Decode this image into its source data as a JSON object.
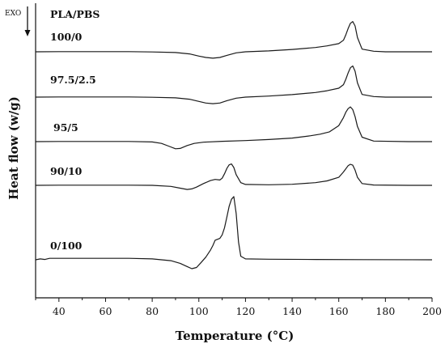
{
  "chart_data": {
    "type": "line",
    "xlabel": "Temperature (°C)",
    "ylabel": "Heat flow (w/g)",
    "xlim": [
      30,
      200
    ],
    "x_ticks": [
      "40",
      "60",
      "80",
      "100",
      "120",
      "140",
      "160",
      "180",
      "200"
    ],
    "legend_title": "PLA/PBS",
    "exo_label": "EXO",
    "series": [
      {
        "name": "100/0",
        "x": [
          30,
          40,
          50,
          60,
          70,
          80,
          90,
          96,
          100,
          103,
          106,
          109,
          112,
          116,
          120,
          130,
          140,
          150,
          155,
          160,
          162,
          163,
          164,
          165,
          166,
          167,
          168,
          170,
          175,
          180,
          190,
          200
        ],
        "y": [
          0,
          0.1,
          0.1,
          0.1,
          0.1,
          -0.1,
          -0.4,
          -1.2,
          -2.4,
          -3.2,
          -3.6,
          -3.2,
          -2.0,
          -0.6,
          0,
          0.5,
          1.3,
          2.4,
          3.3,
          4.6,
          6.5,
          9.5,
          13.0,
          16.0,
          17.0,
          14.5,
          8.0,
          1.5,
          0.3,
          0,
          0,
          0
        ]
      },
      {
        "name": "97.5/2.5",
        "x": [
          30,
          40,
          50,
          60,
          70,
          80,
          90,
          96,
          100,
          103,
          106,
          109,
          112,
          116,
          120,
          130,
          140,
          150,
          155,
          160,
          162,
          163,
          164,
          165,
          166,
          167,
          168,
          170,
          175,
          180,
          190,
          200
        ],
        "y": [
          0,
          0.1,
          0.1,
          0.1,
          0.1,
          -0.1,
          -0.4,
          -1.2,
          -2.4,
          -3.3,
          -3.7,
          -3.3,
          -2.0,
          -0.6,
          0,
          0.6,
          1.4,
          2.6,
          3.6,
          5.0,
          7.0,
          10.0,
          13.5,
          16.5,
          17.5,
          14.5,
          8.0,
          1.5,
          0.3,
          0,
          0,
          0
        ]
      },
      {
        "name": "95/5",
        "x": [
          30,
          40,
          50,
          60,
          70,
          80,
          84,
          87,
          90,
          92,
          95,
          98,
          102,
          110,
          120,
          130,
          140,
          148,
          152,
          156,
          160,
          162,
          163,
          164,
          165,
          166,
          167,
          168,
          170,
          175,
          190,
          200
        ],
        "y": [
          0,
          0.1,
          0.1,
          0.1,
          0.1,
          -0.2,
          -1.0,
          -2.5,
          -4.0,
          -3.8,
          -2.2,
          -1.0,
          -0.3,
          0.2,
          0.6,
          1.2,
          2.0,
          3.3,
          4.2,
          5.5,
          9.0,
          13.5,
          16.5,
          18.5,
          19.5,
          18.0,
          14.0,
          8.5,
          2.5,
          0.3,
          0,
          0
        ]
      },
      {
        "name": "90/10",
        "x": [
          30,
          40,
          50,
          60,
          70,
          80,
          88,
          92,
          95,
          97,
          99,
          102,
          105,
          107,
          109,
          110,
          111,
          112,
          113,
          114,
          115,
          116,
          118,
          120,
          130,
          140,
          150,
          155,
          160,
          162,
          164,
          165,
          166,
          167,
          168,
          170,
          175,
          190,
          200
        ],
        "y": [
          0,
          0.1,
          0.1,
          0.1,
          0.1,
          0,
          -0.6,
          -1.6,
          -2.3,
          -2.0,
          -1.0,
          1.0,
          2.7,
          3.3,
          3.0,
          4.0,
          6.5,
          9.5,
          11.5,
          12.0,
          10.0,
          6.0,
          1.5,
          0.5,
          0.3,
          0.6,
          1.5,
          2.5,
          4.5,
          7.5,
          11.0,
          11.8,
          11.3,
          8.5,
          4.5,
          1.0,
          0.2,
          0,
          0
        ]
      },
      {
        "name": "0/100",
        "x": [
          30,
          32,
          34,
          36,
          40,
          50,
          60,
          70,
          80,
          88,
          92,
          95,
          97,
          99,
          101,
          103,
          105,
          106,
          107,
          108,
          109,
          110,
          111,
          112,
          113,
          114,
          115,
          116,
          117,
          118,
          120,
          130,
          150,
          170,
          200
        ],
        "y": [
          0,
          0.5,
          0.2,
          0.8,
          0.8,
          0.8,
          0.8,
          0.8,
          0.5,
          -0.5,
          -2.0,
          -3.8,
          -5.0,
          -4.3,
          -1.5,
          1.5,
          5.5,
          8.0,
          11.0,
          11.5,
          12.0,
          14.0,
          18.0,
          24.0,
          30.0,
          34.0,
          35.5,
          26.0,
          10.0,
          2.0,
          0.5,
          0.3,
          0.2,
          0.1,
          0
        ]
      }
    ]
  }
}
